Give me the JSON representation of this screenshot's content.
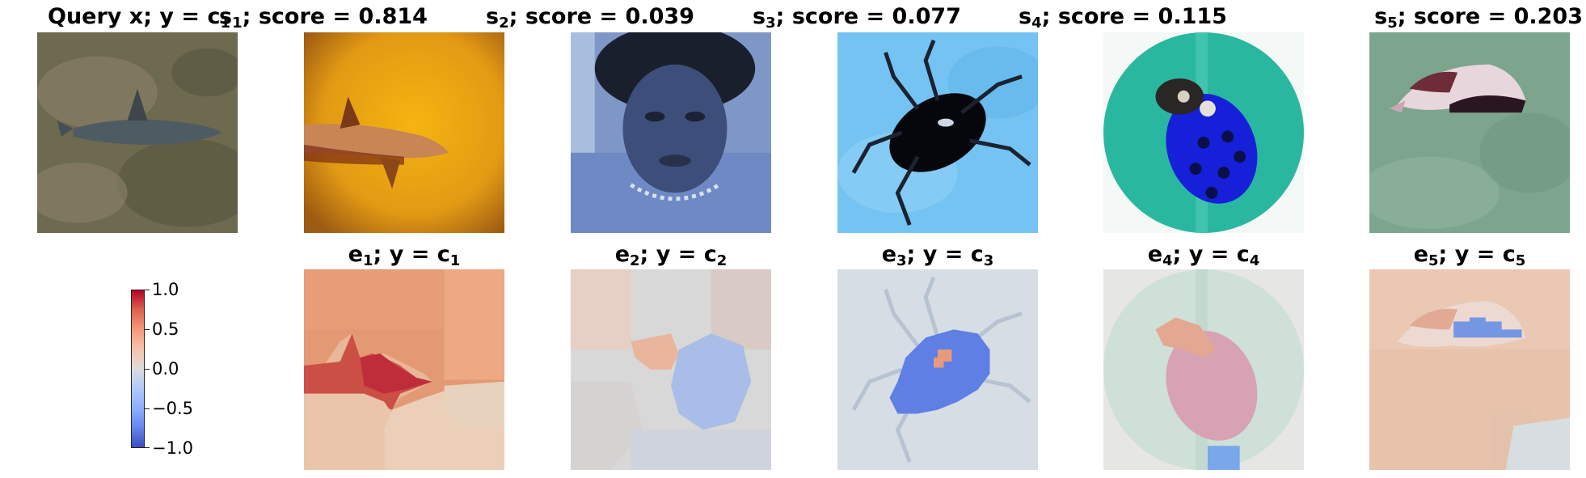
{
  "query": {
    "title_main": "Query x; y = c",
    "title_sub": "1"
  },
  "samples": [
    {
      "letter": "s",
      "index": "1",
      "score_text": "; score = 0.814"
    },
    {
      "letter": "s",
      "index": "2",
      "score_text": "; score = 0.039"
    },
    {
      "letter": "s",
      "index": "3",
      "score_text": "; score = 0.077"
    },
    {
      "letter": "s",
      "index": "4",
      "score_text": "; score = 0.115"
    },
    {
      "letter": "s",
      "index": "5",
      "score_text": "; score = 0.203"
    }
  ],
  "explanations": [
    {
      "letter": "e",
      "index": "1",
      "label_mid": "; y = c",
      "class_index": "1"
    },
    {
      "letter": "e",
      "index": "2",
      "label_mid": "; y = c",
      "class_index": "2"
    },
    {
      "letter": "e",
      "index": "3",
      "label_mid": "; y = c",
      "class_index": "3"
    },
    {
      "letter": "e",
      "index": "4",
      "label_mid": "; y = c",
      "class_index": "4"
    },
    {
      "letter": "e",
      "index": "5",
      "label_mid": "; y = c",
      "class_index": "5"
    }
  ],
  "colorbar": {
    "ticks": [
      "1.0",
      "0.5",
      "0.0",
      "−0.5",
      "−1.0"
    ],
    "colormap": "coolwarm",
    "range": [
      -1.0,
      1.0
    ]
  }
}
